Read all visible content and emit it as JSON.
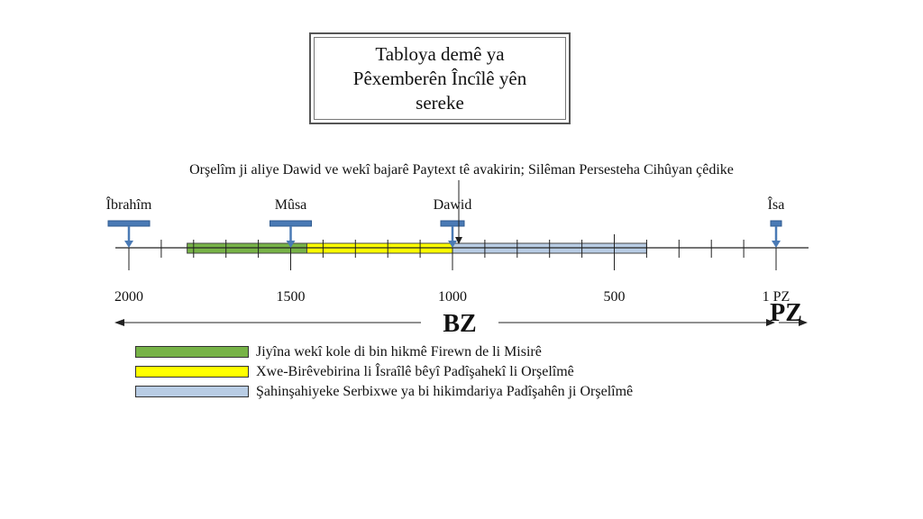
{
  "title": "Tabloya demê ya Pêxemberên Încîlê yên sereke",
  "caption": "Orşelîm ji aliye Dawid ve wekî bajarê Paytext tê avakirin; Silêman Persesteha Cihûyan çêdike",
  "prophets": [
    {
      "name": "Îbrahîm",
      "year_bc": 2000
    },
    {
      "name": "Mûsa",
      "year_bc": 1500
    },
    {
      "name": "Dawid",
      "year_bc": 1000
    },
    {
      "name": "Îsa",
      "year_bc": 0
    }
  ],
  "axis": {
    "range_bc": [
      2000,
      0
    ],
    "tick_labels": [
      {
        "label": "2000",
        "year_bc": 2000
      },
      {
        "label": "1500",
        "year_bc": 1500
      },
      {
        "label": "1000",
        "year_bc": 1000
      },
      {
        "label": "500",
        "year_bc": 500
      },
      {
        "label": "1 PZ",
        "year_bc": 0
      }
    ],
    "bz_label": "BZ",
    "pz_label": "PZ"
  },
  "periods": [
    {
      "label": "Jiyîna wekî kole di bin hikmê Firewn de li Misirê",
      "color": "#77b347",
      "start_bc": 1820,
      "end_bc": 1450
    },
    {
      "label": "Xwe-Birêvebirina li Îsraîlê bêyî Padîşahekî li Orşelîmê",
      "color": "#ffff00",
      "start_bc": 1450,
      "end_bc": 1000
    },
    {
      "label": "Şahinşahiyeke Serbixwe ya bi hikimdariya Padîşahên ji Orşelîmê",
      "color": "#b8cce4",
      "start_bc": 1000,
      "end_bc": 400
    }
  ],
  "colors": {
    "marker": "#4a7ab5",
    "marker_edge": "#2f5a8f",
    "axis": "#222222"
  }
}
